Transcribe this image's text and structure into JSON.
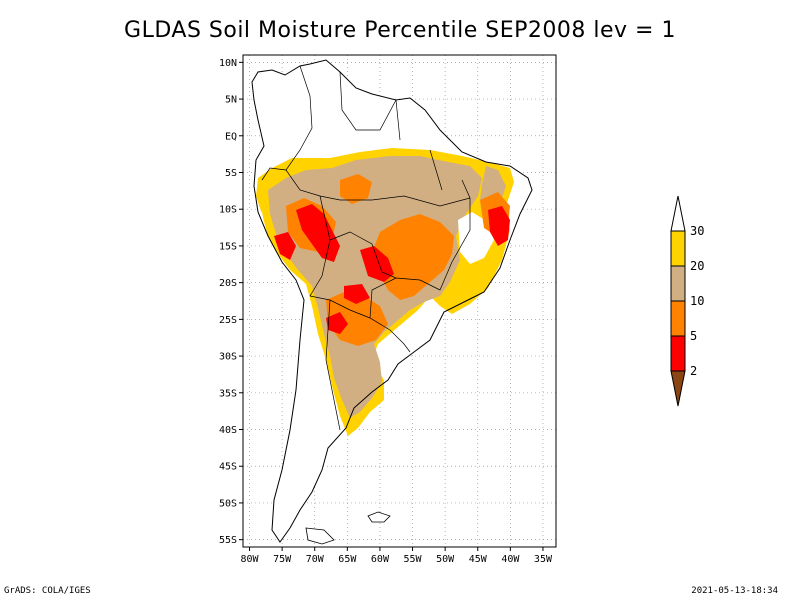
{
  "title": "GLDAS Soil Moisture Percentile SEP2008 lev = 1",
  "footer": {
    "left": "GrADS: COLA/IGES",
    "right": "2021-05-13-18:34"
  },
  "map": {
    "lon_range": [
      -81,
      -33
    ],
    "lat_range": [
      -56,
      11
    ],
    "lat_ticks": [
      {
        "value": 10,
        "label": "10N"
      },
      {
        "value": 5,
        "label": "5N"
      },
      {
        "value": 0,
        "label": "EQ"
      },
      {
        "value": -5,
        "label": "5S"
      },
      {
        "value": -10,
        "label": "10S"
      },
      {
        "value": -15,
        "label": "15S"
      },
      {
        "value": -20,
        "label": "20S"
      },
      {
        "value": -25,
        "label": "25S"
      },
      {
        "value": -30,
        "label": "30S"
      },
      {
        "value": -35,
        "label": "35S"
      },
      {
        "value": -40,
        "label": "40S"
      },
      {
        "value": -45,
        "label": "45S"
      },
      {
        "value": -50,
        "label": "50S"
      },
      {
        "value": -55,
        "label": "55S"
      }
    ],
    "lon_ticks": [
      {
        "value": -80,
        "label": "80W"
      },
      {
        "value": -75,
        "label": "75W"
      },
      {
        "value": -70,
        "label": "70W"
      },
      {
        "value": -65,
        "label": "65W"
      },
      {
        "value": -60,
        "label": "60W"
      },
      {
        "value": -55,
        "label": "55W"
      },
      {
        "value": -50,
        "label": "50W"
      },
      {
        "value": -45,
        "label": "45W"
      },
      {
        "value": -40,
        "label": "40W"
      },
      {
        "value": -35,
        "label": "35W"
      }
    ],
    "grid": "dotted",
    "colors": {
      "coast": "#000000",
      "gt30": "#ffffff",
      "c20_30": "#ffd200",
      "c10_20": "#d2af82",
      "c5_10": "#ff8200",
      "c2_5": "#ff0000",
      "lt2": "#8b4513"
    }
  },
  "colorbar": {
    "labels": [
      "30",
      "20",
      "10",
      "5",
      "2"
    ],
    "bins": [
      {
        "color": "#ffffff",
        "range": ">30"
      },
      {
        "color": "#ffd200",
        "range": "20-30"
      },
      {
        "color": "#d2af82",
        "range": "10-20"
      },
      {
        "color": "#ff8200",
        "range": "5-10"
      },
      {
        "color": "#ff0000",
        "range": "2-5"
      },
      {
        "color": "#8b4513",
        "range": "<2"
      }
    ]
  }
}
